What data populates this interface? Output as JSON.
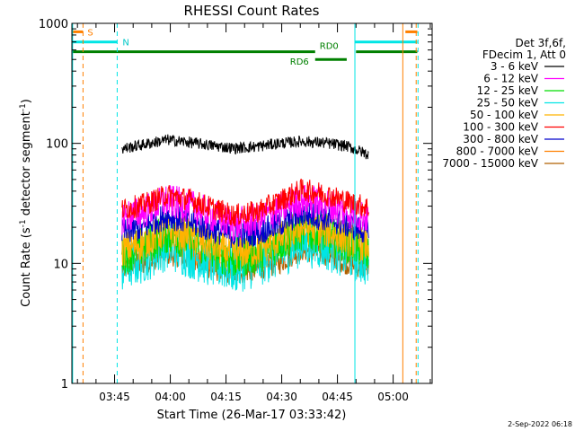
{
  "chart_data": {
    "type": "line",
    "title": "RHESSI Count Rates",
    "xlabel": "Start Time (26-Mar-17 03:33:42)",
    "ylabel_main": "Count Rate (s",
    "ylabel_sup1": "-1",
    "ylabel_mid": " detector segment",
    "ylabel_sup2": "-1",
    "ylabel_end": ")",
    "yscale": "log",
    "ylim": [
      1,
      1000
    ],
    "xlim_minutes": [
      213.5,
      310.5
    ],
    "x_ticks": [
      {
        "t": 225,
        "label": "03:45"
      },
      {
        "t": 240,
        "label": "04:00"
      },
      {
        "t": 255,
        "label": "04:15"
      },
      {
        "t": 270,
        "label": "04:30"
      },
      {
        "t": 285,
        "label": "04:45"
      },
      {
        "t": 300,
        "label": "05:00"
      }
    ],
    "y_ticks": [
      {
        "v": 1,
        "label": "1"
      },
      {
        "v": 10,
        "label": "10"
      },
      {
        "v": 100,
        "label": "100"
      },
      {
        "v": 1000,
        "label": "1000"
      }
    ],
    "legend_title_1": "Det 3f,6f,",
    "legend_title_2": "FDecim 1, Att 0",
    "data_start": 227,
    "data_end": 293.5,
    "series": [
      {
        "name": "3 - 6 keV",
        "color": "#000000",
        "values": [
          90,
          98,
          107,
          102,
          96,
          91,
          94,
          100,
          104,
          101,
          95,
          80
        ],
        "noise": 0.03
      },
      {
        "name": "6 - 12 keV",
        "color": "#ff00ff",
        "values": [
          24,
          27,
          33,
          30,
          25,
          21,
          23,
          28,
          34,
          31,
          27,
          24
        ],
        "noise": 0.09
      },
      {
        "name": "12 - 25 keV",
        "color": "#00dd00",
        "values": [
          12,
          14,
          18,
          16,
          13,
          11,
          12,
          15,
          19,
          18,
          15,
          13
        ],
        "noise": 0.11
      },
      {
        "name": "25 - 50 keV",
        "color": "#00e5e5",
        "values": [
          9,
          11,
          14,
          12,
          10,
          9,
          10,
          12,
          15,
          14,
          12,
          10
        ],
        "noise": 0.13
      },
      {
        "name": "50 - 100 keV",
        "color": "#ffb300",
        "values": [
          13,
          15,
          19,
          17,
          14,
          12,
          13,
          16,
          20,
          19,
          16,
          14
        ],
        "noise": 0.09
      },
      {
        "name": "100 - 300 keV",
        "color": "#ff0000",
        "values": [
          28,
          31,
          37,
          34,
          29,
          25,
          27,
          33,
          41,
          38,
          33,
          29
        ],
        "noise": 0.06
      },
      {
        "name": "300 - 800 keV",
        "color": "#0000cc",
        "values": [
          18,
          20,
          25,
          22,
          19,
          17,
          18,
          21,
          26,
          24,
          21,
          18
        ],
        "noise": 0.07
      },
      {
        "name": "800 - 7000 keV",
        "color": "#ff8000",
        "values": [
          11,
          12,
          15,
          13,
          11,
          10,
          11,
          13,
          16,
          15,
          13,
          11
        ],
        "noise": 0.07
      },
      {
        "name": "7000 - 15000 keV",
        "color": "#b06000",
        "values": [
          9,
          10,
          12,
          11,
          9,
          8,
          9,
          10,
          13,
          12,
          10,
          9
        ],
        "noise": 0.06
      }
    ],
    "annotations": {
      "s_label": "S",
      "n_label": "N",
      "rd0_label": "RD0",
      "rd6_label": "RD6"
    },
    "overlay_bars": [
      {
        "color": "#ff8000",
        "level": 850,
        "segments": [
          [
            213.5,
            216.5
          ],
          [
            303.3,
            306.5
          ]
        ]
      },
      {
        "color": "#00e5e5",
        "level": 700,
        "segments": [
          [
            213.5,
            225.7
          ],
          [
            289.7,
            306.5
          ]
        ]
      },
      {
        "color": "#008000",
        "level": 580,
        "segments": [
          [
            213.5,
            279
          ],
          [
            290,
            306.5
          ]
        ]
      },
      {
        "color": "#008000",
        "level": 500,
        "segments": [
          [
            279,
            287.5
          ]
        ]
      }
    ],
    "vertical_lines": [
      {
        "color": "#00e5e5",
        "t": 213.7,
        "dashed": false
      },
      {
        "color": "#ff8000",
        "t": 216.5,
        "dashed": true
      },
      {
        "color": "#00e5e5",
        "t": 225.7,
        "dashed": true
      },
      {
        "color": "#00e5e5",
        "t": 289.7,
        "dashed": false
      },
      {
        "color": "#ff8000",
        "t": 302.6,
        "dashed": false
      },
      {
        "color": "#ff8000",
        "t": 306.2,
        "dashed": true
      },
      {
        "color": "#00e5e5",
        "t": 306.7,
        "dashed": true
      }
    ],
    "timestamp": "2-Sep-2022 06:18"
  }
}
